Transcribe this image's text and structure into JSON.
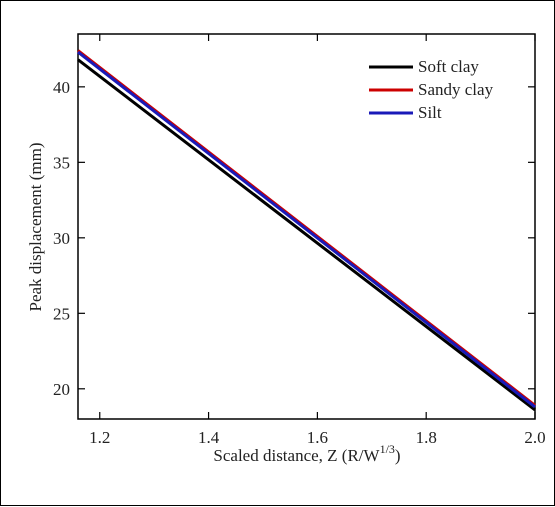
{
  "chart_data": {
    "type": "line",
    "xlabel": "Scaled distance, Z (R/W",
    "xlabel_sup": "1/3",
    "xlabel_suffix": ")",
    "ylabel": "Peak displacement (mm)",
    "xlim": [
      1.16,
      2.0
    ],
    "ylim": [
      18.0,
      43.5
    ],
    "xticks": [
      1.2,
      1.4,
      1.6,
      1.8,
      2.0
    ],
    "xtick_labels": [
      "1.2",
      "1.4",
      "1.6",
      "1.8",
      "2.0"
    ],
    "yticks": [
      20,
      25,
      30,
      35,
      40
    ],
    "ytick_labels": [
      "20",
      "25",
      "30",
      "35",
      "40"
    ],
    "legend_position": "top-right",
    "grid": false,
    "series": [
      {
        "name": "Soft clay",
        "color": "#000000",
        "x": [
          1.16,
          2.0
        ],
        "y": [
          41.8,
          18.6
        ]
      },
      {
        "name": "Sandy clay",
        "color": "#cc0000",
        "x": [
          1.16,
          2.0
        ],
        "y": [
          42.4,
          18.9
        ]
      },
      {
        "name": "Silt",
        "color": "#1a1ab8",
        "x": [
          1.16,
          2.0
        ],
        "y": [
          42.3,
          18.8
        ]
      }
    ]
  }
}
